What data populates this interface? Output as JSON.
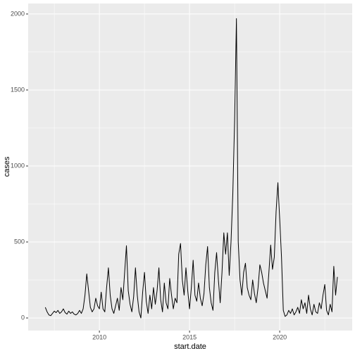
{
  "chart_data": {
    "type": "line",
    "x_label": "start.date",
    "y_label": "cases",
    "x": [
      2007.0,
      2007.1,
      2007.2,
      2007.3,
      2007.4,
      2007.5,
      2007.6,
      2007.7,
      2007.8,
      2007.9,
      2008.0,
      2008.1,
      2008.2,
      2008.3,
      2008.4,
      2008.5,
      2008.6,
      2008.7,
      2008.8,
      2008.9,
      2009.0,
      2009.1,
      2009.2,
      2009.3,
      2009.4,
      2009.5,
      2009.6,
      2009.7,
      2009.8,
      2009.9,
      2010.0,
      2010.1,
      2010.2,
      2010.3,
      2010.4,
      2010.5,
      2010.6,
      2010.7,
      2010.8,
      2010.9,
      2011.0,
      2011.1,
      2011.2,
      2011.3,
      2011.4,
      2011.5,
      2011.6,
      2011.7,
      2011.8,
      2011.9,
      2012.0,
      2012.1,
      2012.2,
      2012.3,
      2012.4,
      2012.5,
      2012.6,
      2012.7,
      2012.8,
      2012.9,
      2013.0,
      2013.1,
      2013.2,
      2013.3,
      2013.4,
      2013.5,
      2013.6,
      2013.7,
      2013.8,
      2013.9,
      2014.0,
      2014.1,
      2014.2,
      2014.3,
      2014.4,
      2014.5,
      2014.6,
      2014.7,
      2014.8,
      2014.9,
      2015.0,
      2015.1,
      2015.2,
      2015.3,
      2015.4,
      2015.5,
      2015.6,
      2015.7,
      2015.8,
      2015.9,
      2016.0,
      2016.1,
      2016.2,
      2016.3,
      2016.4,
      2016.5,
      2016.6,
      2016.7,
      2016.8,
      2016.9,
      2017.0,
      2017.1,
      2017.2,
      2017.3,
      2017.4,
      2017.5,
      2017.6,
      2017.7,
      2017.8,
      2017.9,
      2018.0,
      2018.1,
      2018.2,
      2018.3,
      2018.4,
      2018.5,
      2018.6,
      2018.7,
      2018.8,
      2018.9,
      2019.0,
      2019.1,
      2019.2,
      2019.3,
      2019.4,
      2019.5,
      2019.6,
      2019.7,
      2019.8,
      2019.9,
      2020.0,
      2020.1,
      2020.2,
      2020.3,
      2020.4,
      2020.5,
      2020.6,
      2020.7,
      2020.8,
      2020.9,
      2021.0,
      2021.1,
      2021.2,
      2021.3,
      2021.4,
      2021.5,
      2021.6,
      2021.7,
      2021.8,
      2021.9,
      2022.0,
      2022.1,
      2022.2,
      2022.3,
      2022.4,
      2022.5,
      2022.6,
      2022.7,
      2022.8,
      2022.9,
      2023.0,
      2023.1,
      2023.2
    ],
    "series": [
      {
        "color": "#000000",
        "values": [
          70,
          40,
          20,
          15,
          30,
          45,
          35,
          50,
          30,
          40,
          60,
          35,
          25,
          45,
          30,
          40,
          25,
          20,
          30,
          50,
          30,
          60,
          150,
          290,
          180,
          70,
          40,
          60,
          130,
          80,
          60,
          170,
          60,
          40,
          200,
          330,
          150,
          60,
          30,
          80,
          130,
          50,
          200,
          120,
          300,
          475,
          180,
          90,
          40,
          140,
          330,
          150,
          40,
          0,
          170,
          300,
          110,
          30,
          150,
          60,
          200,
          90,
          180,
          330,
          120,
          40,
          230,
          100,
          60,
          260,
          150,
          60,
          130,
          100,
          420,
          490,
          250,
          150,
          330,
          180,
          60,
          200,
          380,
          150,
          110,
          230,
          130,
          80,
          160,
          350,
          470,
          200,
          100,
          50,
          300,
          430,
          250,
          100,
          300,
          560,
          420,
          560,
          280,
          500,
          820,
          1300,
          1970,
          500,
          250,
          150,
          300,
          360,
          200,
          150,
          120,
          250,
          160,
          100,
          200,
          350,
          300,
          230,
          180,
          130,
          300,
          480,
          320,
          400,
          700,
          890,
          650,
          400,
          50,
          10,
          20,
          50,
          30,
          60,
          20,
          40,
          70,
          30,
          120,
          60,
          100,
          30,
          150,
          60,
          20,
          90,
          40,
          30,
          100,
          60,
          150,
          220,
          50,
          20,
          90,
          40,
          340,
          150,
          270
        ]
      }
    ],
    "xlim": [
      2006.05,
      2024.02
    ],
    "xticks": [
      2010,
      2015,
      2020
    ],
    "ylim": [
      -83,
      2069
    ],
    "yticks": [
      0,
      500,
      1000,
      1500,
      2000
    ],
    "grid": true
  }
}
